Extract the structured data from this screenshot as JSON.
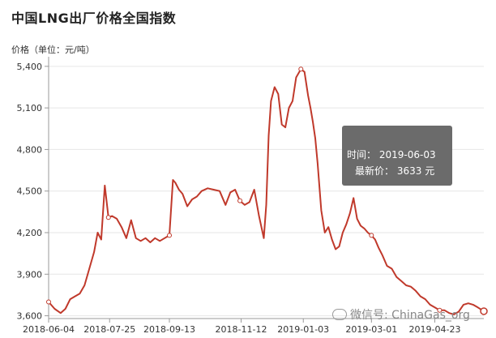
{
  "chart_data": {
    "type": "line",
    "title": "中国LNG出厂价格全国指数",
    "ylabel": "价格（单位：元/吨）",
    "y_ticks": [
      3600,
      3900,
      4200,
      4500,
      4800,
      5100,
      5400
    ],
    "y_tick_labels": [
      "3,600",
      "3,900",
      "4,200",
      "4,500",
      "4,800",
      "5,100",
      "5,400"
    ],
    "ylim": [
      3580,
      5440
    ],
    "x_ticks": [
      "2018-06-04",
      "2018-07-25",
      "2018-09-13",
      "2018-11-12",
      "2019-01-03",
      "2019-03-01",
      "2019-04-23"
    ],
    "x_range": [
      "2018-06-04",
      "2019-06-03"
    ],
    "grid": "horizontal",
    "series_color": "#c0392b",
    "x": [
      "2018-06-04",
      "2018-06-09",
      "2018-06-14",
      "2018-06-18",
      "2018-06-22",
      "2018-06-26",
      "2018-06-30",
      "2018-07-04",
      "2018-07-08",
      "2018-07-12",
      "2018-07-15",
      "2018-07-18",
      "2018-07-21",
      "2018-07-24",
      "2018-07-27",
      "2018-07-31",
      "2018-08-04",
      "2018-08-08",
      "2018-08-12",
      "2018-08-16",
      "2018-08-20",
      "2018-08-24",
      "2018-08-28",
      "2018-09-01",
      "2018-09-05",
      "2018-09-09",
      "2018-09-13",
      "2018-09-16",
      "2018-09-18",
      "2018-09-21",
      "2018-09-24",
      "2018-09-28",
      "2018-10-02",
      "2018-10-06",
      "2018-10-10",
      "2018-10-15",
      "2018-10-20",
      "2018-10-25",
      "2018-10-30",
      "2018-11-03",
      "2018-11-07",
      "2018-11-11",
      "2018-11-15",
      "2018-11-19",
      "2018-11-23",
      "2018-11-27",
      "2018-12-01",
      "2018-12-03",
      "2018-12-05",
      "2018-12-07",
      "2018-12-10",
      "2018-12-13",
      "2018-12-16",
      "2018-12-19",
      "2018-12-22",
      "2018-12-25",
      "2018-12-28",
      "2019-01-01",
      "2019-01-04",
      "2019-01-07",
      "2019-01-09",
      "2019-01-11",
      "2019-01-13",
      "2019-01-15",
      "2019-01-18",
      "2019-01-21",
      "2019-01-24",
      "2019-01-27",
      "2019-01-30",
      "2019-02-02",
      "2019-02-05",
      "2019-02-08",
      "2019-02-11",
      "2019-02-14",
      "2019-02-17",
      "2019-02-20",
      "2019-02-23",
      "2019-02-26",
      "2019-03-01",
      "2019-03-04",
      "2019-03-07",
      "2019-03-10",
      "2019-03-14",
      "2019-03-18",
      "2019-03-22",
      "2019-03-26",
      "2019-03-30",
      "2019-04-03",
      "2019-04-07",
      "2019-04-11",
      "2019-04-15",
      "2019-04-19",
      "2019-04-23",
      "2019-04-27",
      "2019-05-01",
      "2019-05-05",
      "2019-05-09",
      "2019-05-13",
      "2019-05-17",
      "2019-05-21",
      "2019-05-25",
      "2019-05-29",
      "2019-06-03"
    ],
    "values": [
      3700,
      3650,
      3620,
      3650,
      3720,
      3740,
      3760,
      3820,
      3940,
      4060,
      4200,
      4150,
      4540,
      4310,
      4320,
      4300,
      4240,
      4160,
      4290,
      4160,
      4140,
      4160,
      4130,
      4160,
      4140,
      4160,
      4180,
      4580,
      4560,
      4510,
      4480,
      4390,
      4440,
      4460,
      4500,
      4520,
      4510,
      4500,
      4400,
      4490,
      4510,
      4430,
      4400,
      4420,
      4510,
      4320,
      4160,
      4400,
      4900,
      5150,
      5250,
      5200,
      4980,
      4960,
      5100,
      5150,
      5320,
      5380,
      5360,
      5190,
      5100,
      5000,
      4880,
      4700,
      4360,
      4200,
      4240,
      4150,
      4080,
      4100,
      4200,
      4260,
      4340,
      4450,
      4300,
      4250,
      4230,
      4200,
      4180,
      4150,
      4090,
      4040,
      3960,
      3940,
      3880,
      3850,
      3820,
      3810,
      3780,
      3740,
      3720,
      3680,
      3660,
      3640,
      3640,
      3620,
      3610,
      3630,
      3680,
      3690,
      3680,
      3660,
      3633
    ],
    "markers": [
      "2018-06-04",
      "2018-07-24",
      "2018-09-13",
      "2018-11-11",
      "2019-01-01",
      "2019-03-01",
      "2019-04-27",
      "2019-06-03"
    ],
    "tooltip": {
      "time_label": "时间：",
      "time_value": "2019-06-03",
      "price_label": "最新价：",
      "price_value": "3633",
      "price_unit": "元"
    }
  },
  "watermark": {
    "text": "微信号: ChinaGas_org",
    "icon": "wechat-icon"
  }
}
